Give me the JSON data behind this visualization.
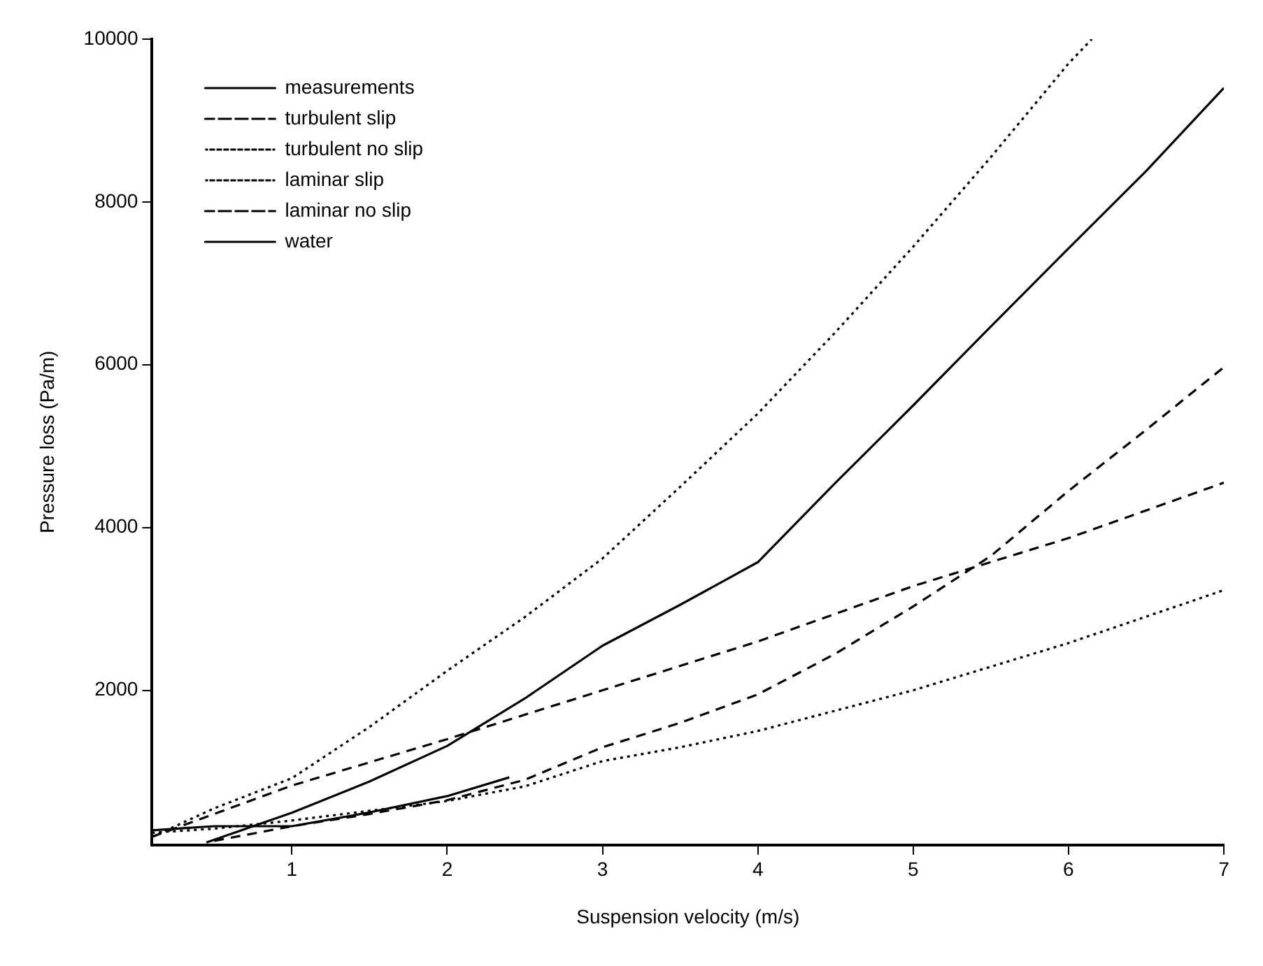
{
  "chart_data": {
    "type": "line",
    "xlabel": "Suspension velocity (m/s)",
    "ylabel": "Pressure loss (Pa/m)",
    "xlim": [
      0.1,
      7
    ],
    "ylim": [
      100,
      10000
    ],
    "xticks": [
      1,
      2,
      3,
      4,
      5,
      6,
      7
    ],
    "yticks": [
      2000,
      4000,
      6000,
      8000,
      10000
    ],
    "legend": "top left",
    "marker": "none",
    "series": [
      {
        "name": "measurements",
        "color": "#000000",
        "line_style": "solid",
        "x": [
          0.1,
          0.5,
          1,
          1.5,
          2,
          2.4
        ],
        "values": [
          280,
          330,
          330,
          500,
          700,
          930
        ]
      },
      {
        "name": "turbulent slip",
        "color": "#000000",
        "line_style": "dashed",
        "x": [
          0.5,
          1,
          1.5,
          2,
          2.5,
          3,
          3.5,
          4,
          4.5,
          5,
          5.5,
          6,
          6.5,
          7
        ],
        "values": [
          150,
          330,
          480,
          650,
          900,
          1300,
          1600,
          1950,
          2450,
          3030,
          3650,
          4450,
          5200,
          5970
        ]
      },
      {
        "name": "turbulent no slip",
        "color": "#000000",
        "line_style": "dotted",
        "x": [
          0.1,
          0.5,
          1,
          1.5,
          2,
          2.5,
          3,
          3.5,
          4,
          4.5,
          5,
          5.5,
          6,
          6.15
        ],
        "values": [
          200,
          550,
          920,
          1550,
          2240,
          2900,
          3620,
          4500,
          5400,
          6400,
          7450,
          8550,
          9700,
          10000
        ]
      },
      {
        "name": "laminar slip",
        "color": "#000000",
        "line_style": "dotted",
        "x": [
          0.1,
          0.5,
          1,
          1.5,
          2,
          2.5,
          3,
          3.5,
          4,
          5,
          6,
          7
        ],
        "values": [
          250,
          300,
          400,
          520,
          640,
          820,
          1130,
          1300,
          1500,
          2000,
          2580,
          3230
        ]
      },
      {
        "name": "laminar no slip",
        "color": "#000000",
        "line_style": "dashed",
        "x": [
          0.1,
          1,
          2,
          3,
          4,
          5,
          6,
          7
        ],
        "values": [
          200,
          830,
          1400,
          2000,
          2600,
          3280,
          3870,
          4550
        ]
      },
      {
        "name": "water",
        "color": "#000000",
        "line_style": "solid",
        "x": [
          0.45,
          1,
          1.5,
          2,
          2.5,
          3,
          3.5,
          4,
          4.5,
          5,
          5.5,
          6,
          6.5,
          7
        ],
        "values": [
          130,
          495,
          880,
          1317,
          1900,
          2548,
          3050,
          3574,
          4550,
          5500,
          6470,
          7430,
          8380,
          9400
        ]
      }
    ]
  }
}
